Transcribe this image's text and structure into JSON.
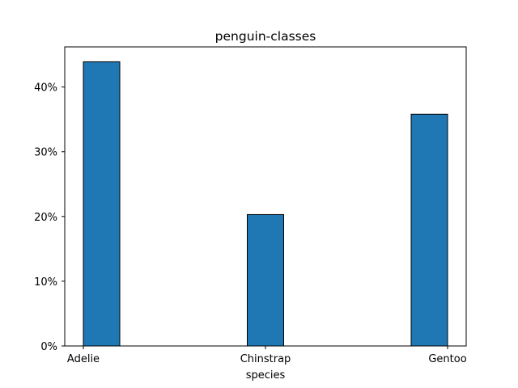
{
  "chart_data": {
    "type": "bar",
    "title": "penguin-classes",
    "xlabel": "species",
    "ylabel": "",
    "categories": [
      "Adelie",
      "Chinstrap",
      "Gentoo"
    ],
    "values": [
      43.9,
      20.3,
      35.8
    ],
    "ylim": [
      0,
      46.2
    ],
    "yticks": [
      0,
      10,
      20,
      30,
      40
    ],
    "ytick_labels": [
      "0%",
      "10%",
      "20%",
      "30%",
      "40%"
    ],
    "bar_color": "#1f77b4",
    "edge_color": "#000000",
    "grid": false,
    "legend": "none"
  }
}
